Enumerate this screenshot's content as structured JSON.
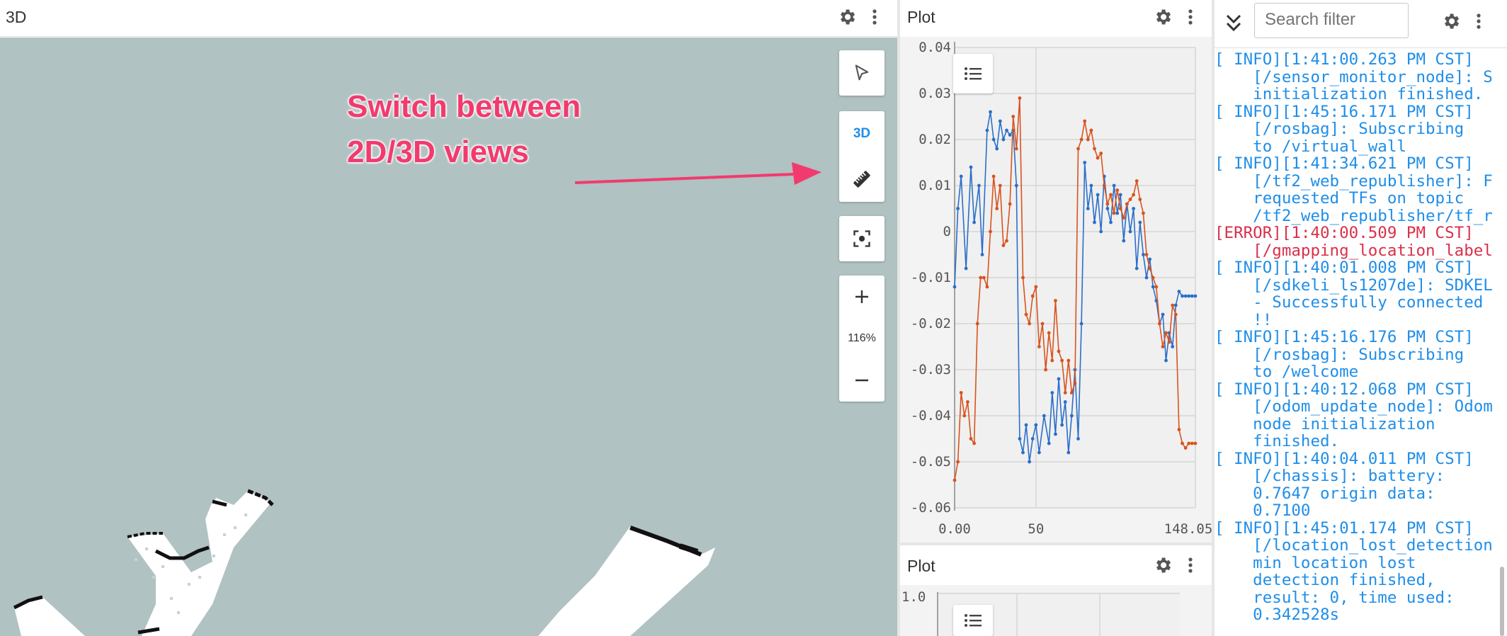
{
  "panels": {
    "three_d": {
      "title": "3D",
      "view_toggle_label": "3D",
      "zoom_level": "116%",
      "background_color": "#b0c2c1"
    },
    "plot_top": {
      "title": "Plot",
      "legend_icon": "list-icon"
    },
    "plot_bottom": {
      "title": "Plot",
      "y_first_tick": "1.0"
    },
    "log": {
      "search_placeholder": "Search filter",
      "lines": [
        {
          "level": "info",
          "text": "[ INFO][1:41:00.263 PM CST]"
        },
        {
          "level": "info",
          "text": "    [/sensor_monitor_node]: S"
        },
        {
          "level": "info",
          "text": "    initialization finished."
        },
        {
          "level": "info",
          "text": "[ INFO][1:45:16.171 PM CST]"
        },
        {
          "level": "info",
          "text": "    [/rosbag]: Subscribing"
        },
        {
          "level": "info",
          "text": "    to /virtual_wall"
        },
        {
          "level": "info",
          "text": "[ INFO][1:41:34.621 PM CST]"
        },
        {
          "level": "info",
          "text": "    [/tf2_web_republisher]: F"
        },
        {
          "level": "info",
          "text": "    requested TFs on topic"
        },
        {
          "level": "info",
          "text": "    /tf2_web_republisher/tf_r"
        },
        {
          "level": "error",
          "text": "[ERROR][1:40:00.509 PM CST]"
        },
        {
          "level": "error",
          "text": "    [/gmapping_location_label"
        },
        {
          "level": "info",
          "text": "[ INFO][1:40:01.008 PM CST]"
        },
        {
          "level": "info",
          "text": "    [/sdkeli_ls1207de]: SDKEL"
        },
        {
          "level": "info",
          "text": "    - Successfully connected"
        },
        {
          "level": "info",
          "text": "    !!"
        },
        {
          "level": "info",
          "text": "[ INFO][1:45:16.176 PM CST]"
        },
        {
          "level": "info",
          "text": "    [/rosbag]: Subscribing"
        },
        {
          "level": "info",
          "text": "    to /welcome"
        },
        {
          "level": "info",
          "text": "[ INFO][1:40:12.068 PM CST]"
        },
        {
          "level": "info",
          "text": "    [/odom_update_node]: Odom"
        },
        {
          "level": "info",
          "text": "    node initialization"
        },
        {
          "level": "info",
          "text": "    finished."
        },
        {
          "level": "info",
          "text": "[ INFO][1:40:04.011 PM CST]"
        },
        {
          "level": "info",
          "text": "    [/chassis]: battery:"
        },
        {
          "level": "info",
          "text": "    0.7647 origin data:"
        },
        {
          "level": "info",
          "text": "    0.7100"
        },
        {
          "level": "info",
          "text": "[ INFO][1:45:01.174 PM CST]"
        },
        {
          "level": "info",
          "text": "    [/location_lost_detection"
        },
        {
          "level": "info",
          "text": "    min location lost"
        },
        {
          "level": "info",
          "text": "    detection finished,"
        },
        {
          "level": "info",
          "text": "    result: 0, time used:"
        },
        {
          "level": "info",
          "text": "    0.342528s"
        }
      ]
    }
  },
  "annotation": {
    "line1": "Switch between",
    "line2": "2D/3D views",
    "color": "#f23a6e"
  },
  "colors": {
    "info": "#1f8ee8",
    "error": "#d9304a",
    "series_blue": "#2a6fc9",
    "series_orange": "#d9531e"
  },
  "chart_data": {
    "type": "line",
    "title": "",
    "xlabel": "",
    "ylabel": "",
    "xlim": [
      0,
      148.05
    ],
    "ylim": [
      -0.06,
      0.04
    ],
    "x_ticks": [
      "0.00",
      "50",
      "148.05"
    ],
    "y_ticks": [
      "0.04",
      "0.03",
      "0.02",
      "0.01",
      "0",
      "-0.01",
      "-0.02",
      "-0.03",
      "-0.04",
      "-0.05",
      "-0.06"
    ],
    "grid": true,
    "series": [
      {
        "color": "#2a6fc9",
        "x": [
          0,
          2,
          4,
          7,
          10,
          12,
          15,
          17,
          20,
          22,
          24,
          26,
          28,
          30,
          32,
          34,
          36,
          38,
          40,
          42,
          44,
          46,
          48,
          50,
          52,
          55,
          58,
          60,
          62,
          64,
          66,
          68,
          70,
          72,
          74,
          76,
          78,
          80,
          82,
          84,
          86,
          88,
          90,
          92,
          94,
          96,
          98,
          100,
          102,
          104,
          106,
          108,
          110,
          112,
          114,
          116,
          118,
          120,
          122,
          124,
          126,
          128,
          130,
          132,
          134,
          136,
          138,
          140,
          142,
          144,
          146,
          148
        ],
        "y": [
          -0.012,
          0.005,
          0.012,
          -0.008,
          0.014,
          0.002,
          0.01,
          -0.005,
          0.022,
          0.026,
          0.02,
          0.018,
          0.024,
          0.02,
          0.022,
          0.021,
          0.022,
          0.01,
          -0.045,
          -0.048,
          -0.042,
          -0.05,
          -0.045,
          -0.042,
          -0.048,
          -0.04,
          -0.046,
          -0.035,
          -0.044,
          -0.032,
          -0.042,
          -0.037,
          -0.048,
          -0.04,
          -0.03,
          -0.045,
          -0.02,
          0.015,
          0.005,
          0.01,
          0.002,
          0.008,
          0.0,
          0.012,
          0.005,
          0.002,
          0.01,
          0.004,
          0.008,
          -0.002,
          0.006,
          0.0,
          0.005,
          -0.008,
          0.002,
          -0.005,
          -0.01,
          -0.006,
          -0.012,
          -0.015,
          -0.02,
          -0.018,
          -0.028,
          -0.022,
          -0.025,
          -0.016,
          -0.013,
          -0.014,
          -0.014,
          -0.014,
          -0.014,
          -0.014
        ]
      },
      {
        "color": "#d9531e",
        "x": [
          0,
          2,
          4,
          6,
          8,
          10,
          12,
          14,
          16,
          18,
          20,
          22,
          24,
          26,
          28,
          30,
          32,
          34,
          36,
          38,
          40,
          42,
          44,
          46,
          48,
          50,
          52,
          54,
          56,
          58,
          60,
          62,
          64,
          66,
          68,
          70,
          72,
          74,
          76,
          78,
          80,
          82,
          84,
          86,
          88,
          90,
          92,
          94,
          96,
          98,
          100,
          102,
          104,
          106,
          108,
          110,
          112,
          114,
          116,
          118,
          120,
          122,
          124,
          126,
          128,
          130,
          132,
          134,
          136,
          138,
          140,
          142,
          144,
          146,
          148
        ],
        "y": [
          -0.054,
          -0.05,
          -0.035,
          -0.04,
          -0.037,
          -0.045,
          -0.046,
          -0.02,
          -0.01,
          -0.01,
          -0.012,
          0.0,
          0.012,
          0.005,
          0.01,
          -0.003,
          -0.002,
          0.006,
          0.025,
          0.018,
          0.029,
          -0.01,
          -0.018,
          -0.02,
          -0.014,
          -0.012,
          -0.025,
          -0.02,
          -0.03,
          -0.022,
          -0.028,
          -0.015,
          -0.026,
          -0.028,
          -0.035,
          -0.028,
          -0.035,
          -0.033,
          0.018,
          0.02,
          0.024,
          0.02,
          0.022,
          0.018,
          0.016,
          0.017,
          0.01,
          0.006,
          0.008,
          0.004,
          0.009,
          0.005,
          0.003,
          0.006,
          0.007,
          0.008,
          0.011,
          0.007,
          0.004,
          -0.005,
          -0.008,
          -0.01,
          -0.012,
          -0.02,
          -0.025,
          -0.022,
          -0.024,
          -0.016,
          -0.018,
          -0.043,
          -0.046,
          -0.047,
          -0.046,
          -0.046,
          -0.046
        ]
      }
    ]
  }
}
